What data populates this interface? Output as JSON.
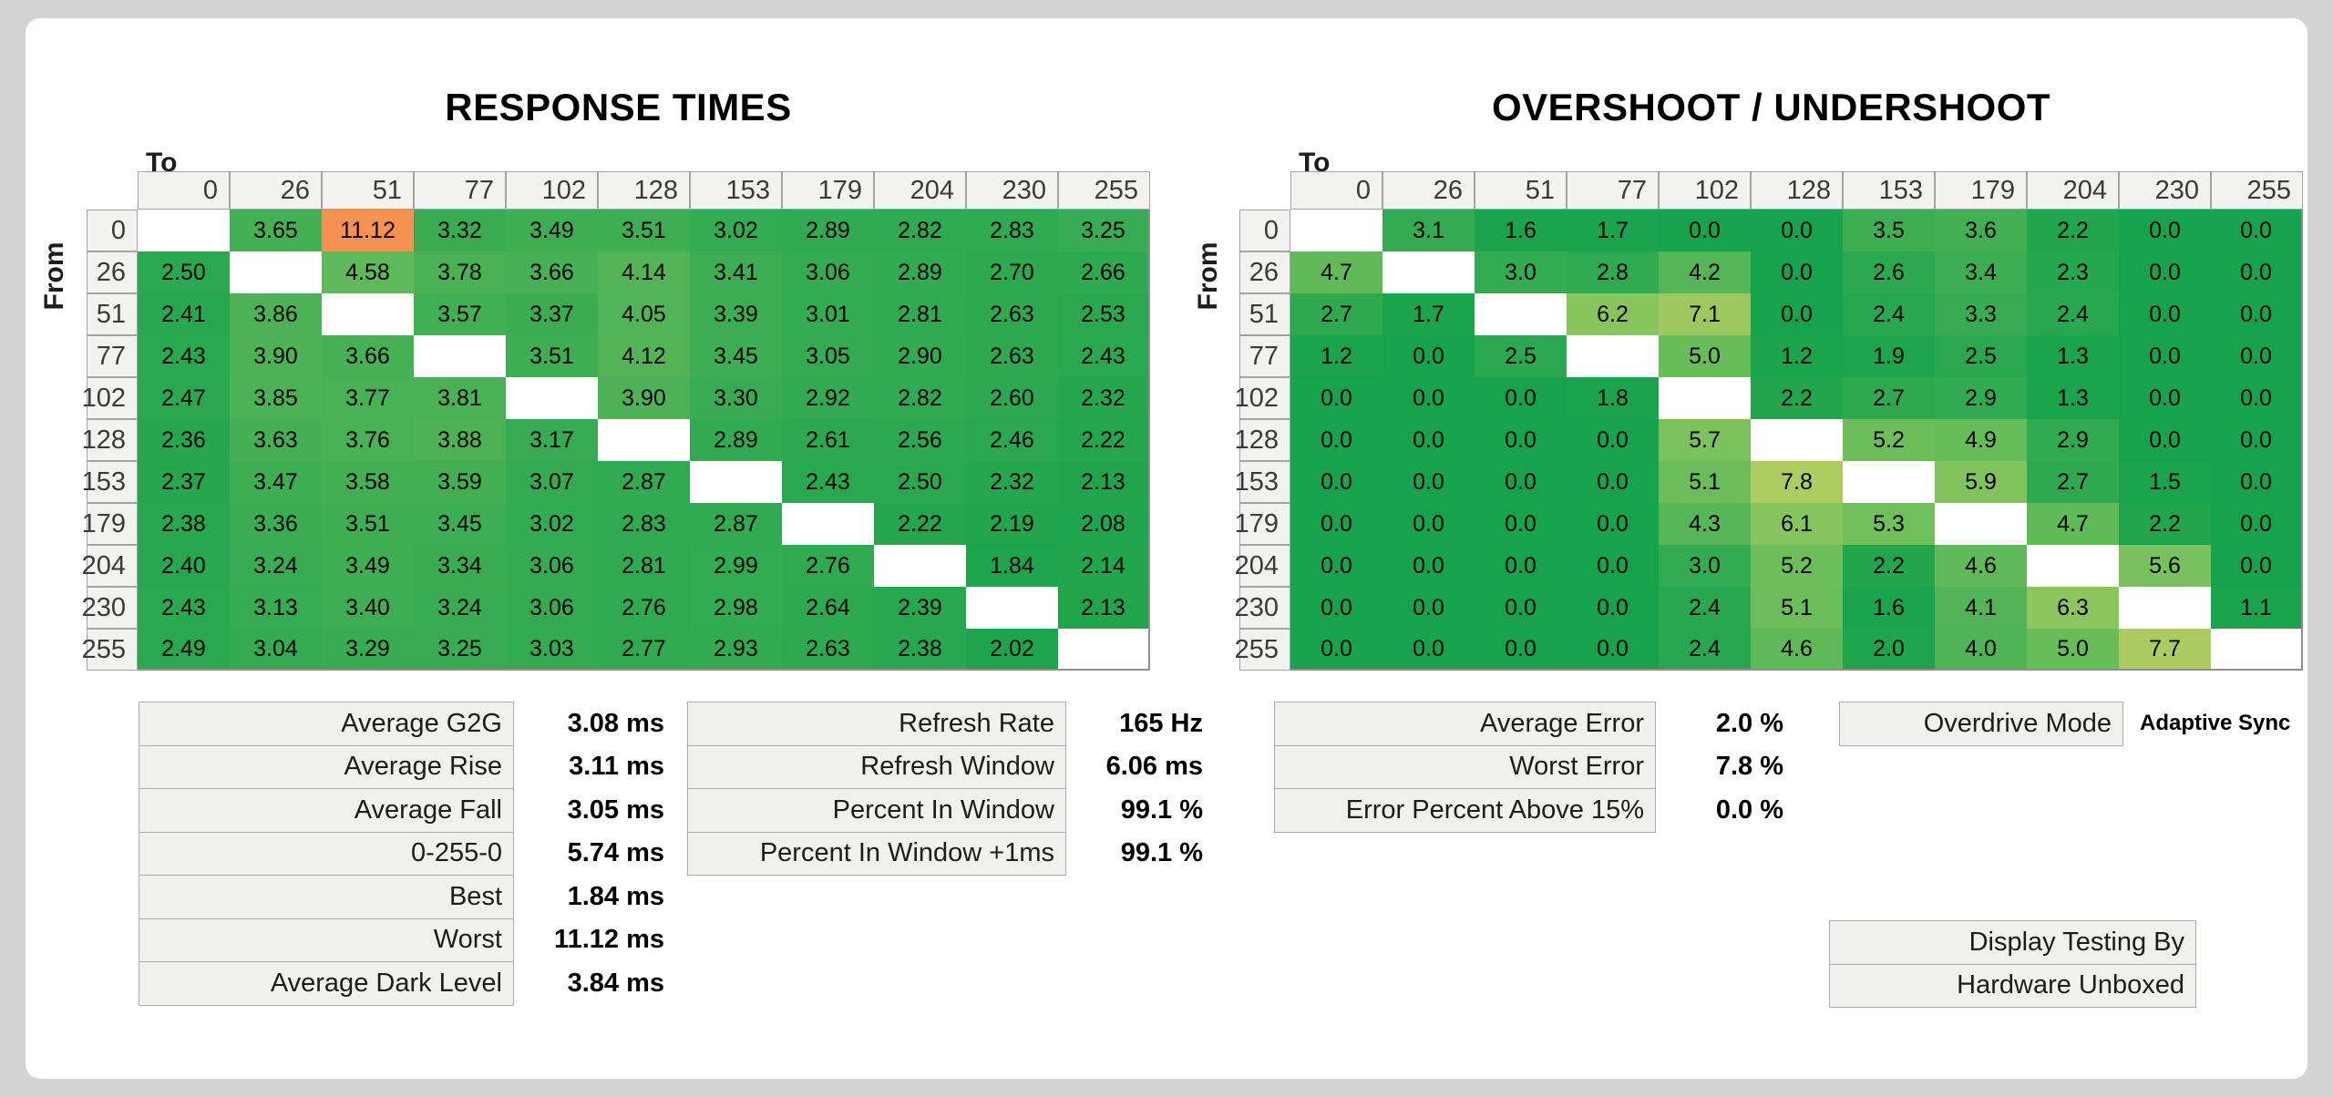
{
  "axes": {
    "to_label": "To",
    "from_label": "From"
  },
  "chart_data": [
    {
      "type": "heatmap",
      "title": "RESPONSE TIMES",
      "x_axis": "To",
      "y_axis": "From",
      "unit": "ms",
      "value_decimals": 2,
      "categories": [
        0,
        26,
        51,
        77,
        102,
        128,
        153,
        179,
        204,
        230,
        255
      ],
      "matrix": [
        [
          null,
          3.65,
          11.12,
          3.32,
          3.49,
          3.51,
          3.02,
          2.89,
          2.82,
          2.83,
          3.25
        ],
        [
          2.5,
          null,
          4.58,
          3.78,
          3.66,
          4.14,
          3.41,
          3.06,
          2.89,
          2.7,
          2.66
        ],
        [
          2.41,
          3.86,
          null,
          3.57,
          3.37,
          4.05,
          3.39,
          3.01,
          2.81,
          2.63,
          2.53
        ],
        [
          2.43,
          3.9,
          3.66,
          null,
          3.51,
          4.12,
          3.45,
          3.05,
          2.9,
          2.63,
          2.43
        ],
        [
          2.47,
          3.85,
          3.77,
          3.81,
          null,
          3.9,
          3.3,
          2.92,
          2.82,
          2.6,
          2.32
        ],
        [
          2.36,
          3.63,
          3.76,
          3.88,
          3.17,
          null,
          2.89,
          2.61,
          2.56,
          2.46,
          2.22
        ],
        [
          2.37,
          3.47,
          3.58,
          3.59,
          3.07,
          2.87,
          null,
          2.43,
          2.5,
          2.32,
          2.13
        ],
        [
          2.38,
          3.36,
          3.51,
          3.45,
          3.02,
          2.83,
          2.87,
          null,
          2.22,
          2.19,
          2.08
        ],
        [
          2.4,
          3.24,
          3.49,
          3.34,
          3.06,
          2.81,
          2.99,
          2.76,
          null,
          1.84,
          2.14
        ],
        [
          2.43,
          3.13,
          3.4,
          3.24,
          3.06,
          2.76,
          2.98,
          2.64,
          2.39,
          null,
          2.13
        ],
        [
          2.49,
          3.04,
          3.29,
          3.25,
          3.03,
          2.77,
          2.93,
          2.63,
          2.38,
          2.02,
          null
        ]
      ]
    },
    {
      "type": "heatmap",
      "title": "OVERSHOOT / UNDERSHOOT",
      "x_axis": "To",
      "y_axis": "From",
      "unit": "%",
      "value_decimals": 1,
      "categories": [
        0,
        26,
        51,
        77,
        102,
        128,
        153,
        179,
        204,
        230,
        255
      ],
      "matrix": [
        [
          null,
          3.1,
          1.6,
          1.7,
          0.0,
          0.0,
          3.5,
          3.6,
          2.2,
          0.0,
          0.0
        ],
        [
          4.7,
          null,
          3.0,
          2.8,
          4.2,
          0.0,
          2.6,
          3.4,
          2.3,
          0.0,
          0.0
        ],
        [
          2.7,
          1.7,
          null,
          6.2,
          7.1,
          0.0,
          2.4,
          3.3,
          2.4,
          0.0,
          0.0
        ],
        [
          1.2,
          0.0,
          2.5,
          null,
          5.0,
          1.2,
          1.9,
          2.5,
          1.3,
          0.0,
          0.0
        ],
        [
          0.0,
          0.0,
          0.0,
          1.8,
          null,
          2.2,
          2.7,
          2.9,
          1.3,
          0.0,
          0.0
        ],
        [
          0.0,
          0.0,
          0.0,
          0.0,
          5.7,
          null,
          5.2,
          4.9,
          2.9,
          0.0,
          0.0
        ],
        [
          0.0,
          0.0,
          0.0,
          0.0,
          5.1,
          7.8,
          null,
          5.9,
          2.7,
          1.5,
          0.0
        ],
        [
          0.0,
          0.0,
          0.0,
          0.0,
          4.3,
          6.1,
          5.3,
          null,
          4.7,
          2.2,
          0.0
        ],
        [
          0.0,
          0.0,
          0.0,
          0.0,
          3.0,
          5.2,
          2.2,
          4.6,
          null,
          5.6,
          0.0
        ],
        [
          0.0,
          0.0,
          0.0,
          0.0,
          2.4,
          5.1,
          1.6,
          4.1,
          6.3,
          null,
          1.1
        ],
        [
          0.0,
          0.0,
          0.0,
          0.0,
          2.4,
          4.6,
          2.0,
          4.0,
          5.0,
          7.7,
          null
        ]
      ]
    }
  ],
  "stats_response": {
    "rows": [
      {
        "label": "Average G2G",
        "value": "3.08",
        "unit": "ms"
      },
      {
        "label": "Average Rise",
        "value": "3.11",
        "unit": "ms"
      },
      {
        "label": "Average Fall",
        "value": "3.05",
        "unit": "ms"
      },
      {
        "label": "0-255-0",
        "value": "5.74",
        "unit": "ms"
      },
      {
        "label": "Best",
        "value": "1.84",
        "unit": "ms"
      },
      {
        "label": "Worst",
        "value": "11.12",
        "unit": "ms"
      },
      {
        "label": "Average Dark Level",
        "value": "3.84",
        "unit": "ms"
      }
    ]
  },
  "stats_refresh": {
    "rows": [
      {
        "label": "Refresh Rate",
        "value": "165",
        "unit": "Hz"
      },
      {
        "label": "Refresh Window",
        "value": "6.06",
        "unit": "ms"
      },
      {
        "label": "Percent In Window",
        "value": "99.1",
        "unit": "%"
      },
      {
        "label": "Percent In Window +1ms",
        "value": "99.1",
        "unit": "%"
      }
    ]
  },
  "stats_error": {
    "rows": [
      {
        "label": "Average Error",
        "value": "2.0",
        "unit": "%"
      },
      {
        "label": "Worst Error",
        "value": "7.8",
        "unit": "%"
      },
      {
        "label": "Error Percent Above 15%",
        "value": "0.0",
        "unit": "%"
      }
    ]
  },
  "overdrive": {
    "rows": [
      {
        "label": "Overdrive Mode",
        "value": "Adaptive Sync",
        "unit": ""
      }
    ]
  },
  "credit": {
    "rows": [
      {
        "label": "Display Testing By"
      },
      {
        "label": "Hardware Unboxed"
      }
    ]
  },
  "colors": {
    "page_background": "#D3D3D3",
    "card_background": "#FFFFFF",
    "header_bg": "#F2F2F0",
    "header_border": "#A3A3A3",
    "stat_box_bg": "#F0F0EE",
    "stat_box_border": "#ABABAB",
    "diagonal_cell": "#FFFFFF",
    "worst_cell": "#F59053",
    "scale": [
      {
        "v": 0.0,
        "c": "#17A34B"
      },
      {
        "v": 2.0,
        "c": "#1DA44C"
      },
      {
        "v": 2.6,
        "c": "#2CA950"
      },
      {
        "v": 3.3,
        "c": "#38AC52"
      },
      {
        "v": 3.9,
        "c": "#4DB255"
      },
      {
        "v": 4.6,
        "c": "#5FB958"
      },
      {
        "v": 5.2,
        "c": "#6CBE5A"
      },
      {
        "v": 5.7,
        "c": "#7CC25C"
      },
      {
        "v": 6.3,
        "c": "#8BC55D"
      },
      {
        "v": 7.1,
        "c": "#9CC85E"
      },
      {
        "v": 7.8,
        "c": "#AECD60"
      },
      {
        "v": 9.0,
        "c": "#D6C963"
      },
      {
        "v": 10.0,
        "c": "#EAAE5C"
      },
      {
        "v": 11.2,
        "c": "#F58F52"
      }
    ]
  }
}
